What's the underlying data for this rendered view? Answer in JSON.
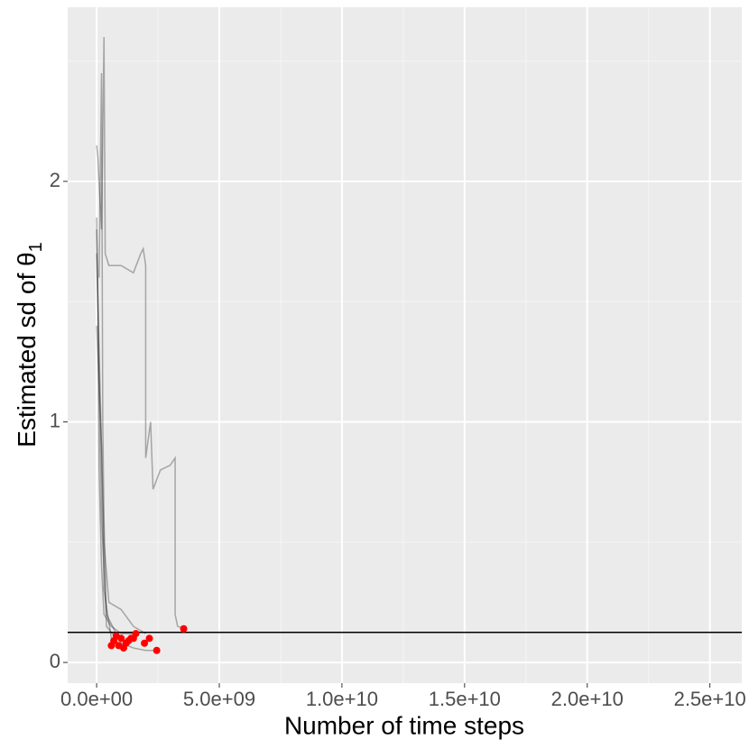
{
  "chart_data": {
    "type": "line",
    "x_label": "Number of time steps",
    "y_label": "Estimated sd of θ",
    "y_label_subscript": "1",
    "xlim": [
      -1180000000.0,
      26300000000.0
    ],
    "ylim": [
      -0.086,
      2.724
    ],
    "xticks": [
      {
        "value": 0,
        "label": "0.0e+00"
      },
      {
        "value": 5000000000.0,
        "label": "5.0e+09"
      },
      {
        "value": 10000000000.0,
        "label": "1.0e+10"
      },
      {
        "value": 15000000000.0,
        "label": "1.5e+10"
      },
      {
        "value": 20000000000.0,
        "label": "2.0e+10"
      },
      {
        "value": 25000000000.0,
        "label": "2.5e+10"
      }
    ],
    "yticks": [
      0,
      1,
      2
    ],
    "xminor": [
      2500000000.0,
      7500000000.0,
      12500000000.0,
      17500000000.0,
      22500000000.0
    ],
    "yminor": [
      0.5,
      1.5,
      2.5
    ],
    "grid": true,
    "line_opacity": 0.3,
    "series": [
      {
        "color": "#000000",
        "x": [
          0,
          50000000.0,
          200000000.0,
          300000000.0,
          350000000.0,
          500000000.0,
          1000000000.0,
          1500000000.0,
          1800000000.0,
          1900000000.0,
          2000000000.0,
          2000000000.0,
          2200000000.0,
          2300000000.0,
          2600000000.0,
          3000000000.0,
          3200000000.0,
          3200000000.0,
          3300000000.0,
          3600000000.0
        ],
        "y": [
          2.15,
          2.1,
          1.8,
          2.6,
          1.7,
          1.65,
          1.65,
          1.62,
          1.7,
          1.72,
          1.65,
          0.85,
          1.0,
          0.72,
          0.8,
          0.82,
          0.85,
          0.2,
          0.15,
          0.14
        ]
      },
      {
        "color": "#000000",
        "x": [
          0,
          50000000.0,
          100000000.0,
          200000000.0,
          300000000.0,
          600000000.0,
          1000000000.0,
          1500000000.0
        ],
        "y": [
          1.85,
          1.5,
          0.8,
          0.4,
          0.2,
          0.15,
          0.12,
          0.12
        ]
      },
      {
        "color": "#000000",
        "x": [
          0,
          150000000.0,
          300000000.0,
          500000000.0,
          1000000000.0,
          1500000000.0,
          2000000000.0
        ],
        "y": [
          1.7,
          1.1,
          0.5,
          0.25,
          0.22,
          0.15,
          0.12
        ]
      },
      {
        "color": "#000000",
        "x": [
          0,
          100000000.0,
          200000000.0,
          400000000.0,
          1000000000.0,
          1500000000.0,
          2000000000.0,
          2500000000.0
        ],
        "y": [
          1.8,
          1.2,
          0.6,
          0.2,
          0.08,
          0.06,
          0.05,
          0.05
        ]
      },
      {
        "color": "#000000",
        "x": [
          0,
          200000000.0,
          300000000.0,
          600000000.0,
          900000000.0
        ],
        "y": [
          1.4,
          0.9,
          0.3,
          0.1,
          0.08
        ]
      },
      {
        "color": "#000000",
        "x": [
          100000000.0,
          200000000.0,
          250000000.0,
          300000000.0,
          400000000.0,
          800000000.0,
          1200000000.0
        ],
        "y": [
          1.6,
          2.45,
          1.0,
          0.6,
          0.15,
          0.1,
          0.09
        ]
      }
    ],
    "points": {
      "color": "#ff0000",
      "x": [
        3550000000.0,
        2450000000.0,
        2150000000.0,
        1950000000.0,
        1600000000.0,
        1400000000.0,
        1200000000.0,
        1000000000.0,
        800000000.0,
        600000000.0,
        900000000.0,
        1100000000.0,
        700000000.0,
        1300000000.0,
        1500000000.0
      ],
      "y": [
        0.14,
        0.05,
        0.1,
        0.08,
        0.12,
        0.1,
        0.08,
        0.1,
        0.11,
        0.07,
        0.07,
        0.06,
        0.09,
        0.09,
        0.1
      ]
    },
    "hline": 0.125,
    "hline_color": "#000000"
  }
}
